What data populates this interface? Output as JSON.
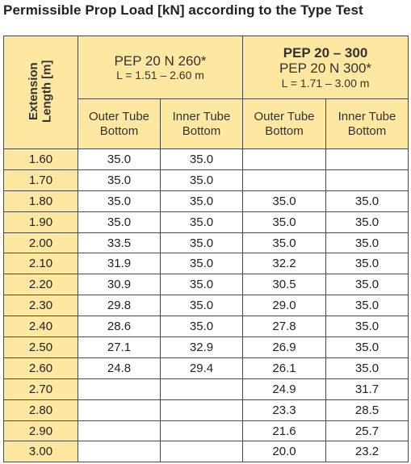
{
  "title": "Permissible Prop Load [kN] according to the Type Test",
  "table": {
    "row_header_label": "Extension Length [m]",
    "groups": [
      {
        "name": "PEP 20 N 260*",
        "range": "L = 1.51 – 2.60 m"
      },
      {
        "family": "PEP 20 – 300",
        "name": "PEP 20 N 300*",
        "range": "L = 1.71 – 3.00 m"
      }
    ],
    "columns": [
      "Outer Tube Bottom",
      "Inner Tube Bottom",
      "Outer Tube Bottom",
      "Inner Tube Bottom"
    ],
    "rows": [
      [
        "1.60",
        "35.0",
        "35.0",
        null,
        null
      ],
      [
        "1.70",
        "35.0",
        "35.0",
        null,
        null
      ],
      [
        "1.80",
        "35.0",
        "35.0",
        "35.0",
        "35.0"
      ],
      [
        "1.90",
        "35.0",
        "35.0",
        "35.0",
        "35.0"
      ],
      [
        "2.00",
        "33.5",
        "35.0",
        "35.0",
        "35.0"
      ],
      [
        "2.10",
        "31.9",
        "35.0",
        "32.2",
        "35.0"
      ],
      [
        "2.20",
        "30.9",
        "35.0",
        "30.5",
        "35.0"
      ],
      [
        "2.30",
        "29.8",
        "35.0",
        "29.0",
        "35.0"
      ],
      [
        "2.40",
        "28.6",
        "35.0",
        "27.8",
        "35.0"
      ],
      [
        "2.50",
        "27.1",
        "32.9",
        "26.9",
        "35.0"
      ],
      [
        "2.60",
        "24.8",
        "29.4",
        "26.1",
        "35.0"
      ],
      [
        "2.70",
        null,
        null,
        "24.9",
        "31.7"
      ],
      [
        "2.80",
        null,
        null,
        "23.3",
        "28.5"
      ],
      [
        "2.90",
        null,
        null,
        "21.6",
        "25.7"
      ],
      [
        "3.00",
        null,
        null,
        "20.0",
        "23.2"
      ]
    ]
  }
}
